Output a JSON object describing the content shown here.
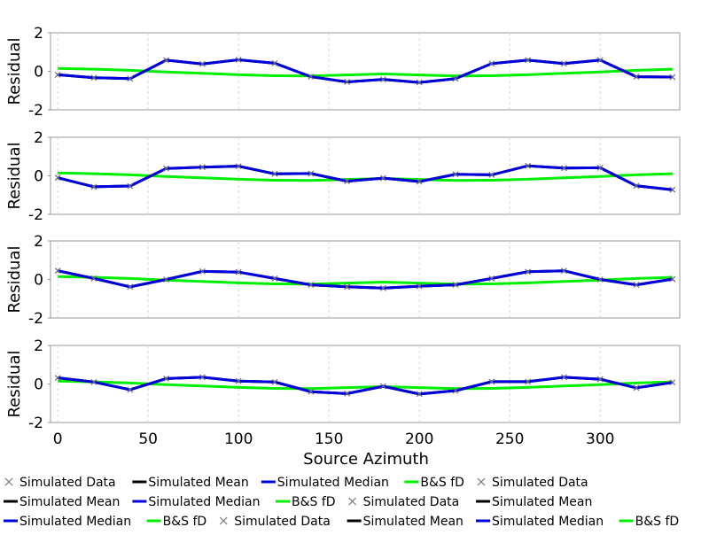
{
  "chart_data": {
    "type": "line",
    "xlabel": "Source Azimuth",
    "ylabel": "Residual",
    "xlim": [
      -4,
      344
    ],
    "ylim": [
      -2,
      2
    ],
    "x_ticks": [
      0,
      50,
      100,
      150,
      200,
      250,
      300
    ],
    "y_ticks": [
      -2,
      0,
      2
    ],
    "grid": "vertical dashed",
    "x": [
      0,
      20,
      40,
      60,
      80,
      100,
      120,
      140,
      160,
      180,
      200,
      220,
      240,
      260,
      280,
      300,
      320,
      340
    ],
    "colors": {
      "data": "#6a6a8a",
      "mean": "#000000",
      "median": "#0000dd",
      "bs_fd": "#00ee00"
    },
    "panels": [
      {
        "data": [
          -0.18,
          -0.33,
          -0.38,
          0.58,
          0.38,
          0.6,
          0.42,
          -0.28,
          -0.55,
          -0.42,
          -0.58,
          -0.38,
          0.4,
          0.58,
          0.4,
          0.58,
          -0.28,
          -0.3
        ],
        "median": [
          -0.18,
          -0.33,
          -0.38,
          0.58,
          0.38,
          0.6,
          0.42,
          -0.28,
          -0.55,
          -0.42,
          -0.58,
          -0.38,
          0.4,
          0.58,
          0.4,
          0.58,
          -0.28,
          -0.3
        ],
        "mean": [
          -0.18,
          -0.33,
          -0.38,
          0.58,
          0.38,
          0.6,
          0.42,
          -0.28,
          -0.55,
          -0.42,
          -0.58,
          -0.38,
          0.4,
          0.58,
          0.4,
          0.58,
          -0.28,
          -0.3
        ],
        "bs_fd": [
          0.15,
          0.11,
          0.05,
          -0.03,
          -0.1,
          -0.18,
          -0.23,
          -0.24,
          -0.19,
          -0.14,
          -0.19,
          -0.24,
          -0.23,
          -0.18,
          -0.1,
          -0.03,
          0.05,
          0.11
        ]
      },
      {
        "data": [
          -0.1,
          -0.57,
          -0.53,
          0.38,
          0.45,
          0.5,
          0.1,
          0.12,
          -0.28,
          -0.12,
          -0.3,
          0.08,
          0.05,
          0.52,
          0.4,
          0.42,
          -0.52,
          -0.72
        ],
        "median": [
          -0.1,
          -0.57,
          -0.53,
          0.38,
          0.45,
          0.5,
          0.1,
          0.12,
          -0.28,
          -0.12,
          -0.3,
          0.08,
          0.05,
          0.52,
          0.4,
          0.42,
          -0.52,
          -0.72
        ],
        "mean": [
          -0.1,
          -0.57,
          -0.53,
          0.38,
          0.45,
          0.5,
          0.1,
          0.12,
          -0.28,
          -0.12,
          -0.3,
          0.08,
          0.05,
          0.52,
          0.4,
          0.42,
          -0.52,
          -0.72
        ],
        "bs_fd": [
          0.15,
          0.11,
          0.05,
          -0.03,
          -0.1,
          -0.18,
          -0.23,
          -0.24,
          -0.19,
          -0.14,
          -0.19,
          -0.24,
          -0.23,
          -0.18,
          -0.1,
          -0.03,
          0.05,
          0.11
        ]
      },
      {
        "data": [
          0.45,
          0.05,
          -0.38,
          0.0,
          0.42,
          0.38,
          0.05,
          -0.28,
          -0.38,
          -0.45,
          -0.35,
          -0.28,
          0.05,
          0.4,
          0.45,
          0.0,
          -0.28,
          0.02
        ],
        "median": [
          0.45,
          0.05,
          -0.38,
          0.0,
          0.42,
          0.38,
          0.05,
          -0.28,
          -0.38,
          -0.45,
          -0.35,
          -0.28,
          0.05,
          0.4,
          0.45,
          0.0,
          -0.28,
          0.02
        ],
        "mean": [
          0.45,
          0.05,
          -0.38,
          0.0,
          0.42,
          0.38,
          0.05,
          -0.28,
          -0.38,
          -0.45,
          -0.35,
          -0.28,
          0.05,
          0.4,
          0.45,
          0.0,
          -0.28,
          0.02
        ],
        "bs_fd": [
          0.15,
          0.11,
          0.05,
          -0.03,
          -0.1,
          -0.18,
          -0.23,
          -0.24,
          -0.19,
          -0.14,
          -0.19,
          -0.24,
          -0.23,
          -0.18,
          -0.1,
          -0.03,
          0.05,
          0.11
        ]
      },
      {
        "data": [
          0.32,
          0.1,
          -0.3,
          0.28,
          0.35,
          0.15,
          0.1,
          -0.4,
          -0.5,
          -0.12,
          -0.52,
          -0.35,
          0.12,
          0.12,
          0.35,
          0.25,
          -0.2,
          0.08
        ],
        "median": [
          0.32,
          0.1,
          -0.3,
          0.28,
          0.35,
          0.15,
          0.1,
          -0.4,
          -0.5,
          -0.12,
          -0.52,
          -0.35,
          0.12,
          0.12,
          0.35,
          0.25,
          -0.2,
          0.08
        ],
        "mean": [
          0.32,
          0.1,
          -0.3,
          0.28,
          0.35,
          0.15,
          0.1,
          -0.4,
          -0.5,
          -0.12,
          -0.52,
          -0.35,
          0.12,
          0.12,
          0.35,
          0.25,
          -0.2,
          0.08
        ],
        "bs_fd": [
          0.15,
          0.11,
          0.05,
          -0.03,
          -0.1,
          -0.18,
          -0.23,
          -0.24,
          -0.19,
          -0.14,
          -0.19,
          -0.24,
          -0.23,
          -0.18,
          -0.1,
          -0.03,
          0.05,
          0.11
        ]
      }
    ],
    "legend_placement": "bottom",
    "legend": [
      {
        "label": "Simulated Data",
        "kind": "marker",
        "color": "#777777"
      },
      {
        "label": "Simulated Mean",
        "kind": "line",
        "color": "#000000"
      },
      {
        "label": "Simulated Median",
        "kind": "line",
        "color": "#0000dd"
      },
      {
        "label": "B&S fD",
        "kind": "line",
        "color": "#00ee00"
      },
      {
        "label": "Simulated Data",
        "kind": "marker",
        "color": "#777777"
      },
      {
        "label": "Simulated Mean",
        "kind": "line",
        "color": "#000000"
      },
      {
        "label": "Simulated Median",
        "kind": "line",
        "color": "#0000dd"
      },
      {
        "label": "B&S fD",
        "kind": "line",
        "color": "#00ee00"
      },
      {
        "label": "Simulated Data",
        "kind": "marker",
        "color": "#777777"
      },
      {
        "label": "Simulated Mean",
        "kind": "line",
        "color": "#000000"
      },
      {
        "label": "Simulated Median",
        "kind": "line",
        "color": "#0000dd"
      },
      {
        "label": "B&S fD",
        "kind": "line",
        "color": "#00ee00"
      },
      {
        "label": "Simulated Data",
        "kind": "marker",
        "color": "#777777"
      },
      {
        "label": "Simulated Mean",
        "kind": "line",
        "color": "#000000"
      },
      {
        "label": "Simulated Median",
        "kind": "line",
        "color": "#0000dd"
      },
      {
        "label": "B&S fD",
        "kind": "line",
        "color": "#00ee00"
      }
    ]
  }
}
